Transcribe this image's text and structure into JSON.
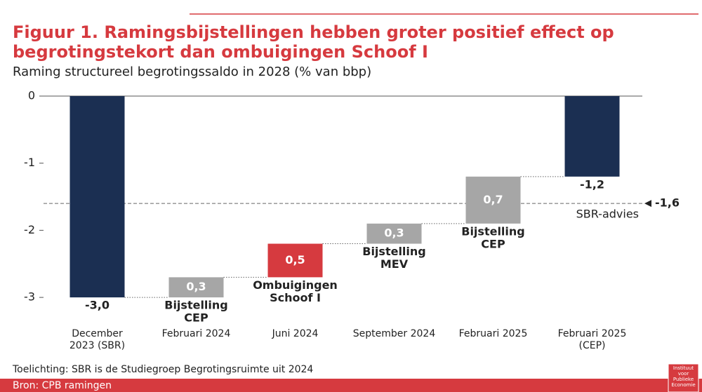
{
  "chart_data": {
    "type": "waterfall",
    "title": [
      "Figuur 1. Ramingsbijstellingen hebben groter positief effect op",
      "begrotingstekort dan ombuigingen Schoof I"
    ],
    "subtitle": "Raming structureel begrotingssaldo in 2028 (% van bbp)",
    "categories": [
      [
        "December",
        "2023 (SBR)"
      ],
      [
        "Februari 2024"
      ],
      [
        "Juni 2024"
      ],
      [
        "September 2024"
      ],
      [
        "Februari 2025"
      ],
      [
        "Februari 2025",
        "(CEP)"
      ]
    ],
    "values": [
      -3.0,
      0.3,
      0.5,
      0.3,
      0.7,
      -1.2
    ],
    "value_labels": [
      "-3,0",
      "0,3",
      "0,5",
      "0,3",
      "0,7",
      "-1,2"
    ],
    "kinds": [
      "total",
      "delta",
      "delta",
      "delta",
      "delta",
      "total"
    ],
    "colors": [
      "#1b2f52",
      "#a6a6a6",
      "#d63a3f",
      "#a6a6a6",
      "#a6a6a6",
      "#1b2f52"
    ],
    "bar_labels": [
      null,
      [
        "Bijstelling",
        "CEP"
      ],
      [
        "Ombuigingen",
        "Schoof I"
      ],
      [
        "Bijstelling",
        "MEV"
      ],
      [
        "Bijstelling",
        "CEP"
      ],
      null
    ],
    "ylim": [
      -3.3,
      0
    ],
    "yticks": [
      0,
      -1,
      -2,
      -3
    ],
    "reference": {
      "value": -1.6,
      "label": "-1,6",
      "name": "SBR-advies"
    },
    "note": "Toelichting: SBR is de Studiegroep Begrotingsruimte uit 2024",
    "source": "Bron: CPB ramingen",
    "logo": [
      "Instituut",
      "voor",
      "Publieke",
      "Economie"
    ]
  }
}
